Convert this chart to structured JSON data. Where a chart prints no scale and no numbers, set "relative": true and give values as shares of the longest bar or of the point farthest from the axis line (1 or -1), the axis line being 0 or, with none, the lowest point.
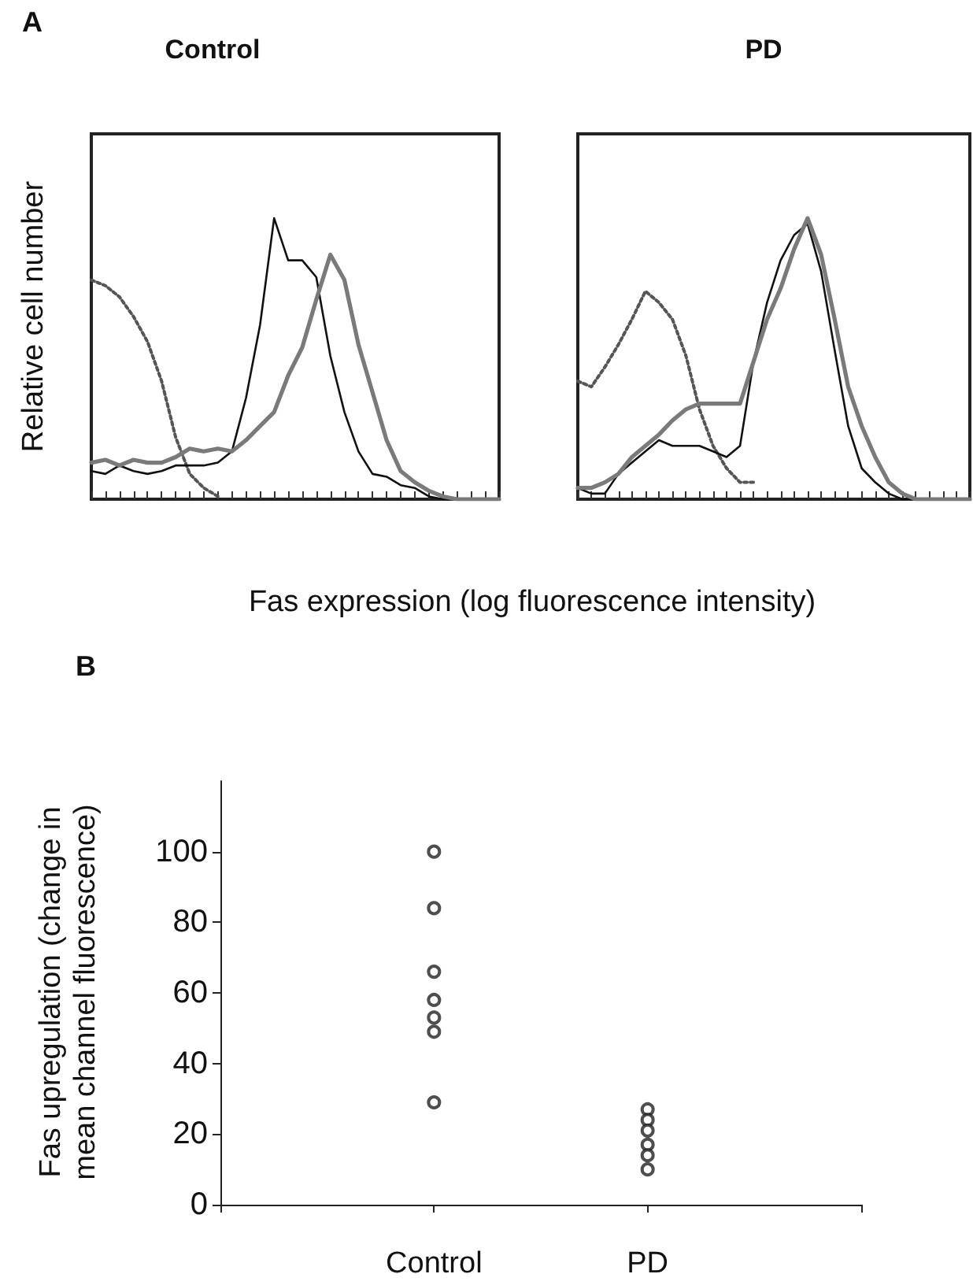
{
  "chart_data": [
    {
      "type": "line",
      "title": "Control",
      "ylabel": "Relative cell number",
      "xlabel": "Fas expression (log fluorescence intensity)",
      "annotations": [
        "A"
      ],
      "relative": true,
      "categories": [
        null,
        null,
        null,
        null,
        null,
        null,
        null,
        null,
        null,
        null,
        null,
        null,
        null,
        null,
        null,
        null,
        null,
        null,
        null,
        null,
        null,
        null,
        null,
        null,
        null,
        null,
        null,
        null,
        null,
        null
      ],
      "series": [
        {
          "color": "#555555",
          "line_style": "dotted",
          "values": [
            0.78,
            0.76,
            0.72,
            0.65,
            0.56,
            0.42,
            0.22,
            0.09,
            0.04,
            0.01,
            null,
            null,
            null,
            null,
            null,
            null,
            null,
            null,
            null,
            null,
            null,
            null,
            null,
            null,
            null,
            null,
            null,
            null,
            null,
            null
          ]
        },
        {
          "color": "#111111",
          "line_style": "solid",
          "values": [
            0.1,
            0.09,
            0.12,
            0.1,
            0.09,
            0.1,
            0.12,
            0.12,
            0.12,
            0.13,
            0.17,
            0.36,
            0.62,
            1,
            0.85,
            0.85,
            0.79,
            0.51,
            0.31,
            0.17,
            0.09,
            0.08,
            0.05,
            0.04,
            0.01,
            0,
            0,
            0,
            0,
            0
          ]
        },
        {
          "color": "#7a7a7a",
          "line_style": "solid",
          "values": [
            0.13,
            0.14,
            0.12,
            0.14,
            0.13,
            0.13,
            0.15,
            0.18,
            0.17,
            0.18,
            0.17,
            0.21,
            0.26,
            0.31,
            0.44,
            0.54,
            0.71,
            0.87,
            0.78,
            0.55,
            0.38,
            0.21,
            0.1,
            0.06,
            0.03,
            0.01,
            0,
            0,
            0,
            0
          ]
        }
      ]
    },
    {
      "type": "line",
      "title": "PD",
      "relative": true,
      "categories": [
        null,
        null,
        null,
        null,
        null,
        null,
        null,
        null,
        null,
        null,
        null,
        null,
        null,
        null,
        null,
        null,
        null,
        null,
        null,
        null,
        null,
        null,
        null,
        null,
        null,
        null,
        null,
        null,
        null,
        null
      ],
      "series": [
        {
          "color": "#555555",
          "line_style": "dotted",
          "values": [
            0.42,
            0.4,
            0.47,
            0.55,
            0.64,
            0.74,
            0.7,
            0.64,
            0.51,
            0.32,
            0.19,
            0.11,
            0.06,
            0.06,
            null,
            null,
            null,
            null,
            null,
            null,
            null,
            null,
            null,
            null,
            null,
            null,
            null,
            null,
            null,
            null
          ]
        },
        {
          "color": "#111111",
          "line_style": "solid",
          "values": [
            0.04,
            0.02,
            0.02,
            0.09,
            0.13,
            0.17,
            0.21,
            0.19,
            0.19,
            0.19,
            0.17,
            0.15,
            0.19,
            0.49,
            0.7,
            0.85,
            0.94,
            0.98,
            0.81,
            0.53,
            0.26,
            0.11,
            0.06,
            0.02,
            0,
            0,
            0,
            0,
            0,
            0
          ]
        },
        {
          "color": "#7a7a7a",
          "line_style": "solid",
          "values": [
            0.04,
            0.04,
            0.06,
            0.09,
            0.15,
            0.19,
            0.23,
            0.28,
            0.32,
            0.34,
            0.34,
            0.34,
            0.34,
            0.49,
            0.64,
            0.75,
            0.89,
            1,
            0.87,
            0.64,
            0.4,
            0.26,
            0.15,
            0.06,
            0.02,
            0,
            0,
            0,
            0,
            0
          ]
        }
      ]
    },
    {
      "type": "scatter",
      "ylabel": "Fas upregulation (change in\nmean channel fluorescence)",
      "annotations": [
        "B"
      ],
      "marker": "circle",
      "categories": [
        "Control",
        "PD"
      ],
      "ylim": [
        0,
        120
      ],
      "yticks": [
        0,
        20,
        40,
        60,
        80,
        100
      ],
      "series": [
        {
          "color": "#222222",
          "x": [
            "Control",
            "Control",
            "Control",
            "Control",
            "Control",
            "Control",
            "Control",
            "PD",
            "PD",
            "PD",
            "PD",
            "PD",
            "PD"
          ],
          "values": [
            100,
            84,
            66,
            58,
            53,
            49,
            29,
            27,
            24,
            21,
            17,
            14,
            10
          ]
        }
      ]
    }
  ]
}
